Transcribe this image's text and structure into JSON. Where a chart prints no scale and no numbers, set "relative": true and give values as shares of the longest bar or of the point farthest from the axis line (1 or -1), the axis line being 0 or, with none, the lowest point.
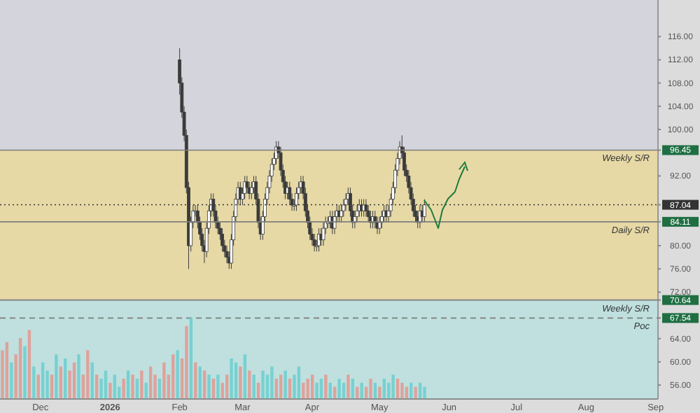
{
  "chart_data": [
    {
      "type": "candlestick",
      "xlim": [
        "2025-11-13",
        "2026-09-02"
      ],
      "ylim": [
        53.6,
        122.3
      ],
      "xticks": [
        {
          "value": "2025-12-01",
          "label": "Dec"
        },
        {
          "value": "2026-01-01",
          "label": "2026"
        },
        {
          "value": "2026-02-01",
          "label": "Feb"
        },
        {
          "value": "2026-03-01",
          "label": "Mar"
        },
        {
          "value": "2026-04-01",
          "label": "Apr"
        },
        {
          "value": "2026-05-01",
          "label": "May"
        },
        {
          "value": "2026-06-01",
          "label": "Jun"
        },
        {
          "value": "2026-07-01",
          "label": "Jul"
        },
        {
          "value": "2026-08-01",
          "label": "Aug"
        },
        {
          "value": "2026-09-01",
          "label": "Sep"
        }
      ],
      "yticks": [
        {
          "value": 116,
          "label": "116.00"
        },
        {
          "value": 112,
          "label": "112.00"
        },
        {
          "value": 108,
          "label": "108.00"
        },
        {
          "value": 104,
          "label": "104.00"
        },
        {
          "value": 100,
          "label": "100.00"
        },
        96.45,
        {
          "value": 92,
          "label": "92.00"
        },
        87.04,
        84.11,
        {
          "value": 80,
          "label": "80.00"
        },
        {
          "value": 76,
          "label": "76.00"
        },
        {
          "value": 72,
          "label": "72.00"
        },
        70.64,
        67.54,
        {
          "value": 64,
          "label": "64.00"
        },
        {
          "value": 60,
          "label": "60.00"
        },
        {
          "value": 56,
          "label": "56.00"
        }
      ],
      "bands": [
        {
          "axis": "y",
          "from": 96.45,
          "to": 122.3,
          "color": "#d4d4dc"
        },
        {
          "axis": "y",
          "from": 70.64,
          "to": 96.45,
          "color": "#e6d9a6"
        },
        {
          "axis": "y",
          "from": 53.6,
          "to": 70.64,
          "color": "#bfe0df"
        }
      ],
      "ref_lines": [
        {
          "axis": "y",
          "value": 96.45,
          "label": "Weekly S/R",
          "color": "#7d7d7d",
          "line_style": "solid"
        },
        {
          "axis": "y",
          "value": 84.11,
          "label": "Daily S/R",
          "color": "#7d7d7d",
          "line_style": "solid"
        },
        {
          "axis": "y",
          "value": 70.64,
          "label": "Weekly S/R",
          "color": "#7d7d7d",
          "line_style": "solid"
        },
        {
          "axis": "y",
          "value": 67.54,
          "label": "Poc",
          "color": "#7d7d7d",
          "line_style": "dashed"
        },
        {
          "axis": "y",
          "value": 87.04,
          "color": "#333333",
          "line_style": "dotted"
        }
      ],
      "color": "#3b3b3b",
      "x": [
        "2026-02-01",
        "2026-02-02",
        "2026-02-03",
        "2026-02-04",
        "2026-02-05",
        "2026-02-06",
        "2026-02-07",
        "2026-02-08",
        "2026-02-09",
        "2026-02-10",
        "2026-02-11",
        "2026-02-12",
        "2026-02-13",
        "2026-02-14",
        "2026-02-15",
        "2026-02-16",
        "2026-02-17",
        "2026-02-18",
        "2026-02-19",
        "2026-02-20",
        "2026-02-21",
        "2026-02-22",
        "2026-02-23",
        "2026-02-24",
        "2026-02-25",
        "2026-02-26",
        "2026-02-27",
        "2026-02-28",
        "2026-03-01",
        "2026-03-02",
        "2026-03-03",
        "2026-03-04",
        "2026-03-05",
        "2026-03-06",
        "2026-03-07",
        "2026-03-08",
        "2026-03-09",
        "2026-03-10",
        "2026-03-11",
        "2026-03-12",
        "2026-03-13",
        "2026-03-14",
        "2026-03-15",
        "2026-03-16",
        "2026-03-17",
        "2026-03-18",
        "2026-03-19",
        "2026-03-20",
        "2026-03-21",
        "2026-03-22",
        "2026-03-23",
        "2026-03-24",
        "2026-03-25",
        "2026-03-26",
        "2026-03-27",
        "2026-03-28",
        "2026-03-29",
        "2026-03-30",
        "2026-03-31",
        "2026-04-01",
        "2026-04-02",
        "2026-04-03",
        "2026-04-04",
        "2026-04-05",
        "2026-04-06",
        "2026-04-07",
        "2026-04-08",
        "2026-04-09",
        "2026-04-10",
        "2026-04-11",
        "2026-04-12",
        "2026-04-13",
        "2026-04-14",
        "2026-04-15",
        "2026-04-16",
        "2026-04-17",
        "2026-04-18",
        "2026-04-19",
        "2026-04-20",
        "2026-04-21",
        "2026-04-22",
        "2026-04-23",
        "2026-04-24",
        "2026-04-25",
        "2026-04-26",
        "2026-04-27",
        "2026-04-28",
        "2026-04-29",
        "2026-04-30",
        "2026-05-01",
        "2026-05-02",
        "2026-05-03",
        "2026-05-04",
        "2026-05-05",
        "2026-05-06",
        "2026-05-07",
        "2026-05-08",
        "2026-05-09",
        "2026-05-10",
        "2026-05-11",
        "2026-05-12",
        "2026-05-13",
        "2026-05-14",
        "2026-05-15",
        "2026-05-16",
        "2026-05-17",
        "2026-05-18",
        "2026-05-19",
        "2026-05-20",
        "2026-05-21"
      ],
      "ohlc": [
        [
          112,
          114,
          106,
          108
        ],
        [
          108,
          109,
          102,
          103
        ],
        [
          103,
          104,
          98,
          99
        ],
        [
          99,
          100,
          89,
          90
        ],
        [
          90,
          91,
          76,
          80
        ],
        [
          80,
          85,
          79,
          84
        ],
        [
          84,
          87,
          83,
          86
        ],
        [
          86,
          87,
          85,
          86
        ],
        [
          86,
          87,
          83,
          84
        ],
        [
          84,
          85,
          81,
          82
        ],
        [
          82,
          83,
          79,
          80
        ],
        [
          80,
          81,
          77,
          79
        ],
        [
          79,
          84,
          78,
          83
        ],
        [
          83,
          87,
          82,
          86
        ],
        [
          86,
          89,
          85,
          88
        ],
        [
          88,
          89,
          85,
          86
        ],
        [
          86,
          87,
          83,
          84
        ],
        [
          84,
          85,
          82,
          83
        ],
        [
          83,
          84,
          81,
          82
        ],
        [
          82,
          83,
          79,
          80
        ],
        [
          80,
          81,
          78,
          79
        ],
        [
          79,
          80,
          77,
          78
        ],
        [
          78,
          79,
          76,
          77
        ],
        [
          77,
          82,
          76,
          81
        ],
        [
          81,
          86,
          80,
          85
        ],
        [
          85,
          89,
          84,
          88
        ],
        [
          88,
          91,
          87,
          90
        ],
        [
          90,
          91,
          87,
          88
        ],
        [
          88,
          90,
          87,
          89
        ],
        [
          89,
          92,
          88,
          91
        ],
        [
          91,
          92,
          89,
          90
        ],
        [
          90,
          91,
          88,
          89
        ],
        [
          89,
          91,
          88,
          90
        ],
        [
          90,
          92,
          89,
          91
        ],
        [
          91,
          92,
          87,
          88
        ],
        [
          88,
          89,
          83,
          84
        ],
        [
          84,
          85,
          81,
          82
        ],
        [
          82,
          86,
          81,
          85
        ],
        [
          85,
          89,
          84,
          88
        ],
        [
          88,
          91,
          87,
          90
        ],
        [
          90,
          93,
          89,
          92
        ],
        [
          92,
          95,
          91,
          94
        ],
        [
          94,
          96,
          93,
          95
        ],
        [
          95,
          98,
          94,
          97
        ],
        [
          97,
          98,
          95,
          96
        ],
        [
          96,
          97,
          92,
          93
        ],
        [
          93,
          94,
          90,
          91
        ],
        [
          91,
          92,
          88,
          89
        ],
        [
          89,
          91,
          88,
          90
        ],
        [
          90,
          91,
          87,
          88
        ],
        [
          88,
          89,
          86,
          87
        ],
        [
          87,
          88,
          86,
          87
        ],
        [
          87,
          90,
          86,
          89
        ],
        [
          89,
          91,
          88,
          90
        ],
        [
          90,
          92,
          89,
          91
        ],
        [
          91,
          92,
          88,
          89
        ],
        [
          89,
          90,
          85,
          86
        ],
        [
          86,
          87,
          83,
          84
        ],
        [
          84,
          85,
          81,
          82
        ],
        [
          82,
          83,
          80,
          81
        ],
        [
          81,
          82,
          79,
          80
        ],
        [
          80,
          81,
          79,
          80
        ],
        [
          80,
          83,
          79,
          82
        ],
        [
          82,
          83,
          80,
          81
        ],
        [
          81,
          84,
          80,
          83
        ],
        [
          83,
          85,
          82,
          84
        ],
        [
          84,
          85,
          83,
          84
        ],
        [
          84,
          86,
          83,
          85
        ],
        [
          85,
          86,
          82,
          83
        ],
        [
          83,
          86,
          82,
          85
        ],
        [
          85,
          87,
          84,
          86
        ],
        [
          86,
          87,
          84,
          85
        ],
        [
          85,
          87,
          84,
          86
        ],
        [
          86,
          88,
          85,
          87
        ],
        [
          87,
          89,
          86,
          88
        ],
        [
          88,
          90,
          87,
          89
        ],
        [
          89,
          90,
          85,
          86
        ],
        [
          86,
          87,
          83,
          84
        ],
        [
          84,
          86,
          83,
          85
        ],
        [
          85,
          87,
          84,
          86
        ],
        [
          86,
          88,
          85,
          87
        ],
        [
          87,
          88,
          85,
          86
        ],
        [
          86,
          88,
          85,
          87
        ],
        [
          87,
          88,
          85,
          86
        ],
        [
          86,
          87,
          84,
          85
        ],
        [
          85,
          86,
          83,
          84
        ],
        [
          84,
          86,
          83,
          85
        ],
        [
          85,
          86,
          83,
          84
        ],
        [
          84,
          85,
          82,
          83
        ],
        [
          83,
          85,
          82,
          84
        ],
        [
          84,
          86,
          83,
          85
        ],
        [
          85,
          87,
          84,
          86
        ],
        [
          86,
          87,
          84,
          85
        ],
        [
          85,
          87,
          84,
          86
        ],
        [
          86,
          89,
          85,
          88
        ],
        [
          88,
          91,
          87,
          90
        ],
        [
          90,
          94,
          89,
          93
        ],
        [
          93,
          96,
          92,
          95
        ],
        [
          95,
          98,
          94,
          97
        ],
        [
          97,
          99,
          95,
          96
        ],
        [
          96,
          97,
          92,
          93
        ],
        [
          93,
          94,
          91,
          92
        ],
        [
          92,
          93,
          89,
          90
        ],
        [
          90,
          91,
          87,
          88
        ],
        [
          88,
          89,
          85,
          86
        ],
        [
          86,
          87,
          84,
          85
        ],
        [
          85,
          86,
          83,
          84
        ],
        [
          84,
          87,
          83,
          86
        ],
        [
          86,
          87,
          84,
          85
        ],
        [
          85,
          88,
          84,
          87.04
        ]
      ]
    },
    {
      "type": "bar",
      "relative": true,
      "tick_labels": false,
      "xlim": [
        "2025-11-13",
        "2026-09-02"
      ],
      "x": [
        "2025-11-14",
        "2025-11-16",
        "2025-11-18",
        "2025-11-20",
        "2025-11-22",
        "2025-11-24",
        "2025-11-26",
        "2025-11-28",
        "2025-11-30",
        "2025-12-02",
        "2025-12-04",
        "2025-12-06",
        "2025-12-08",
        "2025-12-10",
        "2025-12-12",
        "2025-12-14",
        "2025-12-16",
        "2025-12-18",
        "2025-12-20",
        "2025-12-22",
        "2025-12-24",
        "2025-12-26",
        "2025-12-28",
        "2025-12-30",
        "2026-01-01",
        "2026-01-03",
        "2026-01-05",
        "2026-01-07",
        "2026-01-09",
        "2026-01-11",
        "2026-01-13",
        "2026-01-15",
        "2026-01-17",
        "2026-01-19",
        "2026-01-21",
        "2026-01-23",
        "2026-01-25",
        "2026-01-27",
        "2026-01-29",
        "2026-01-31",
        "2026-02-02",
        "2026-02-04",
        "2026-02-06",
        "2026-02-08",
        "2026-02-10",
        "2026-02-12",
        "2026-02-14",
        "2026-02-16",
        "2026-02-18",
        "2026-02-20",
        "2026-02-22",
        "2026-02-24",
        "2026-02-26",
        "2026-02-28",
        "2026-03-02",
        "2026-03-04",
        "2026-03-06",
        "2026-03-08",
        "2026-03-10",
        "2026-03-12",
        "2026-03-14",
        "2026-03-16",
        "2026-03-18",
        "2026-03-20",
        "2026-03-22",
        "2026-03-24",
        "2026-03-26",
        "2026-03-28",
        "2026-03-30",
        "2026-04-01",
        "2026-04-03",
        "2026-04-05",
        "2026-04-07",
        "2026-04-09",
        "2026-04-11",
        "2026-04-13",
        "2026-04-15",
        "2026-04-17",
        "2026-04-19",
        "2026-04-21",
        "2026-04-23",
        "2026-04-25",
        "2026-04-27",
        "2026-04-29",
        "2026-05-01",
        "2026-05-03",
        "2026-05-05",
        "2026-05-07",
        "2026-05-09",
        "2026-05-11",
        "2026-05-13",
        "2026-05-15",
        "2026-05-17",
        "2026-05-19",
        "2026-05-21"
      ],
      "values": [
        0.6,
        0.7,
        0.45,
        0.55,
        0.75,
        0.65,
        0.85,
        0.4,
        0.3,
        0.45,
        0.35,
        0.3,
        0.55,
        0.4,
        0.5,
        0.35,
        0.45,
        0.55,
        0.3,
        0.6,
        0.45,
        0.3,
        0.25,
        0.35,
        0.2,
        0.3,
        0.15,
        0.25,
        0.35,
        0.3,
        0.25,
        0.35,
        0.2,
        0.4,
        0.3,
        0.25,
        0.45,
        0.3,
        0.55,
        0.6,
        0.5,
        0.9,
        1,
        0.45,
        0.4,
        0.35,
        0.3,
        0.25,
        0.3,
        0.2,
        0.3,
        0.5,
        0.45,
        0.4,
        0.55,
        0.35,
        0.3,
        0.2,
        0.35,
        0.3,
        0.4,
        0.25,
        0.3,
        0.35,
        0.25,
        0.3,
        0.4,
        0.2,
        0.25,
        0.3,
        0.2,
        0.25,
        0.3,
        0.2,
        0.15,
        0.25,
        0.2,
        0.3,
        0.25,
        0.15,
        0.2,
        0.15,
        0.25,
        0.2,
        0.15,
        0.25,
        0.2,
        0.3,
        0.25,
        0.2,
        0.15,
        0.2,
        0.15,
        0.2,
        0.15
      ],
      "colors": [
        "#e29b95",
        "#e29b95",
        "#6fcfcf",
        "#e29b95",
        "#e29b95",
        "#6fcfcf",
        "#e29b95",
        "#6fcfcf",
        "#e29b95",
        "#6fcfcf",
        "#6fcfcf",
        "#e29b95",
        "#6fcfcf",
        "#e29b95",
        "#6fcfcf",
        "#e29b95",
        "#e29b95",
        "#6fcfcf",
        "#e29b95",
        "#e29b95",
        "#6fcfcf",
        "#e29b95",
        "#6fcfcf",
        "#6fcfcf",
        "#e29b95",
        "#6fcfcf",
        "#6fcfcf",
        "#e29b95",
        "#6fcfcf",
        "#e29b95",
        "#6fcfcf",
        "#e29b95",
        "#6fcfcf",
        "#e29b95",
        "#e29b95",
        "#6fcfcf",
        "#e29b95",
        "#e29b95",
        "#e29b95",
        "#6fcfcf",
        "#e29b95",
        "#e29b95",
        "#6fcfcf",
        "#e29b95",
        "#6fcfcf",
        "#e29b95",
        "#6fcfcf",
        "#e29b95",
        "#6fcfcf",
        "#e29b95",
        "#e29b95",
        "#6fcfcf",
        "#6fcfcf",
        "#e29b95",
        "#6fcfcf",
        "#e29b95",
        "#6fcfcf",
        "#e29b95",
        "#6fcfcf",
        "#6fcfcf",
        "#6fcfcf",
        "#e29b95",
        "#e29b95",
        "#6fcfcf",
        "#e29b95",
        "#6fcfcf",
        "#6fcfcf",
        "#e29b95",
        "#e29b95",
        "#e29b95",
        "#6fcfcf",
        "#6fcfcf",
        "#e29b95",
        "#6fcfcf",
        "#e29b95",
        "#6fcfcf",
        "#6fcfcf",
        "#e29b95",
        "#6fcfcf",
        "#e29b95",
        "#6fcfcf",
        "#e29b95",
        "#e29b95",
        "#6fcfcf",
        "#e29b95",
        "#6fcfcf",
        "#6fcfcf",
        "#6fcfcf",
        "#e29b95",
        "#e29b95",
        "#e29b95",
        "#6fcfcf",
        "#e29b95",
        "#6fcfcf",
        "#6fcfcf"
      ]
    }
  ]
}
